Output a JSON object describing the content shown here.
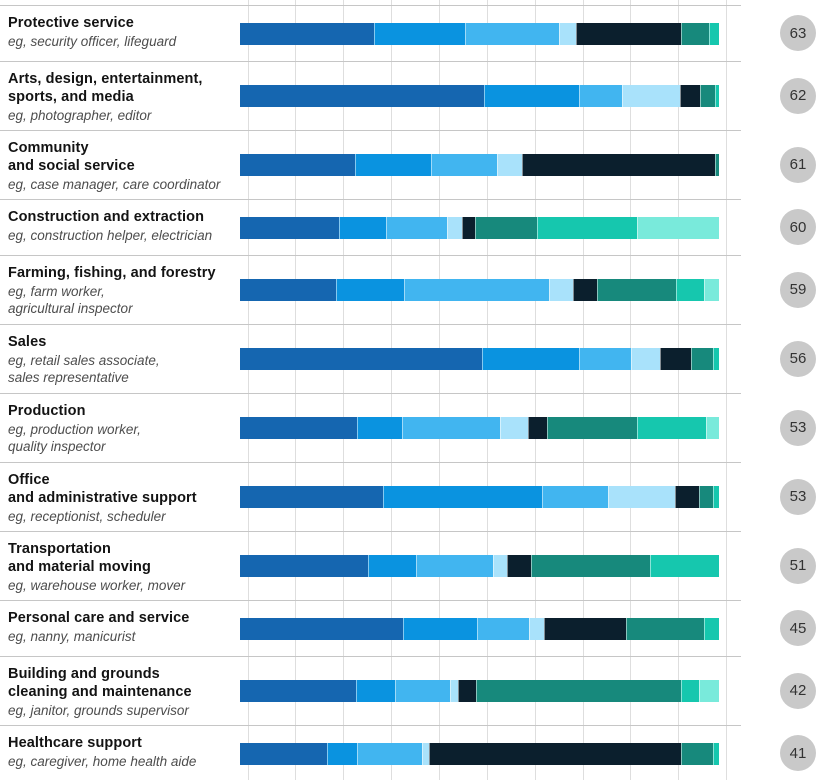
{
  "chart_data": {
    "type": "bar",
    "orientation": "horizontal",
    "stacked": true,
    "unit": "percent of bar width",
    "layout": {
      "grid": true,
      "gridline_count": 11,
      "bar_axis_range": [
        0,
        100
      ],
      "legend": "none visible",
      "right_badges": "gray circles with overall score"
    },
    "palette": {
      "dark-blue": "#1566b0",
      "medium-blue": "#0a93e0",
      "light-blue": "#41b5f0",
      "pale-blue": "#a9e2fb",
      "dark-navy": "#0b1f2d",
      "dark-teal": "#17897c",
      "turquoise": "#16c7ae",
      "light-aqua": "#79eadb"
    },
    "segment_order": [
      "dark-blue",
      "medium-blue",
      "light-blue",
      "pale-blue",
      "dark-navy",
      "dark-teal",
      "turquoise",
      "light-aqua"
    ],
    "badge_bg": "#c9c9c9",
    "rows": [
      {
        "title": "Protective service",
        "examples": "eg, security officer, lifeguard",
        "score": "63",
        "lines": 2,
        "segments": [
          27.9,
          19.1,
          19.6,
          3.5,
          21.9,
          5.9,
          2.1,
          0
        ]
      },
      {
        "title": "Arts, design, entertainment,\nsports, and media",
        "examples": "eg, photographer, editor",
        "score": "62",
        "lines": 3,
        "segments": [
          50.9,
          19.8,
          9.0,
          12.2,
          4.2,
          3.0,
          0.9,
          0
        ]
      },
      {
        "title": "Community\nand social service",
        "examples": "eg, case manager, care coordinator",
        "score": "61",
        "lines": 3,
        "segments": [
          24.0,
          15.8,
          13.9,
          5.2,
          40.3,
          0.8,
          0,
          0
        ]
      },
      {
        "title": "Construction and extraction",
        "examples": "eg, construction helper, electrician",
        "score": "60",
        "lines": 2,
        "segments": [
          20.6,
          9.9,
          12.7,
          3.1,
          2.8,
          12.9,
          20.9,
          17.1
        ]
      },
      {
        "title": "Farming, fishing, and forestry",
        "examples": "eg, farm worker,\nagricultural inspector",
        "score": "59",
        "lines": 3,
        "segments": [
          20.1,
          14.2,
          30.2,
          5.0,
          5.1,
          16.4,
          5.9,
          3.1
        ]
      },
      {
        "title": "Sales",
        "examples": "eg, retail sales associate,\nsales representative",
        "score": "56",
        "lines": 3,
        "segments": [
          50.6,
          20.2,
          10.8,
          6.1,
          6.4,
          4.7,
          1.2,
          0
        ]
      },
      {
        "title": "Production",
        "examples": "eg, production worker,\nquality inspector",
        "score": "53",
        "lines": 3,
        "segments": [
          24.4,
          9.5,
          20.4,
          5.8,
          4.0,
          18.8,
          14.3,
          2.8
        ]
      },
      {
        "title": "Office\nand administrative support",
        "examples": "eg, receptionist, scheduler",
        "score": "53",
        "lines": 3,
        "segments": [
          29.8,
          33.1,
          13.9,
          13.9,
          5.0,
          3.0,
          1.2,
          0
        ]
      },
      {
        "title": "Transportation\nand material moving",
        "examples": "eg, warehouse worker, mover",
        "score": "51",
        "lines": 3,
        "segments": [
          26.7,
          10.1,
          16.0,
          2.9,
          5.1,
          24.9,
          14.3,
          0
        ]
      },
      {
        "title": "Personal care and service",
        "examples": "eg, nanny, manicurist",
        "score": "45",
        "lines": 2,
        "segments": [
          34.0,
          15.5,
          10.8,
          3.1,
          17.1,
          16.4,
          3.1,
          0
        ]
      },
      {
        "title": "Building and grounds\ncleaning and maintenance",
        "examples": "eg, janitor, grounds supervisor",
        "score": "42",
        "lines": 3,
        "segments": [
          24.1,
          8.2,
          11.6,
          1.6,
          3.8,
          42.6,
          3.8,
          4.2
        ]
      },
      {
        "title": "Healthcare support",
        "examples": "eg, caregiver, home health aide",
        "score": "41",
        "lines": 2,
        "segments": [
          18.2,
          6.1,
          13.7,
          1.5,
          52.4,
          6.8,
          1.2,
          0
        ]
      }
    ]
  }
}
